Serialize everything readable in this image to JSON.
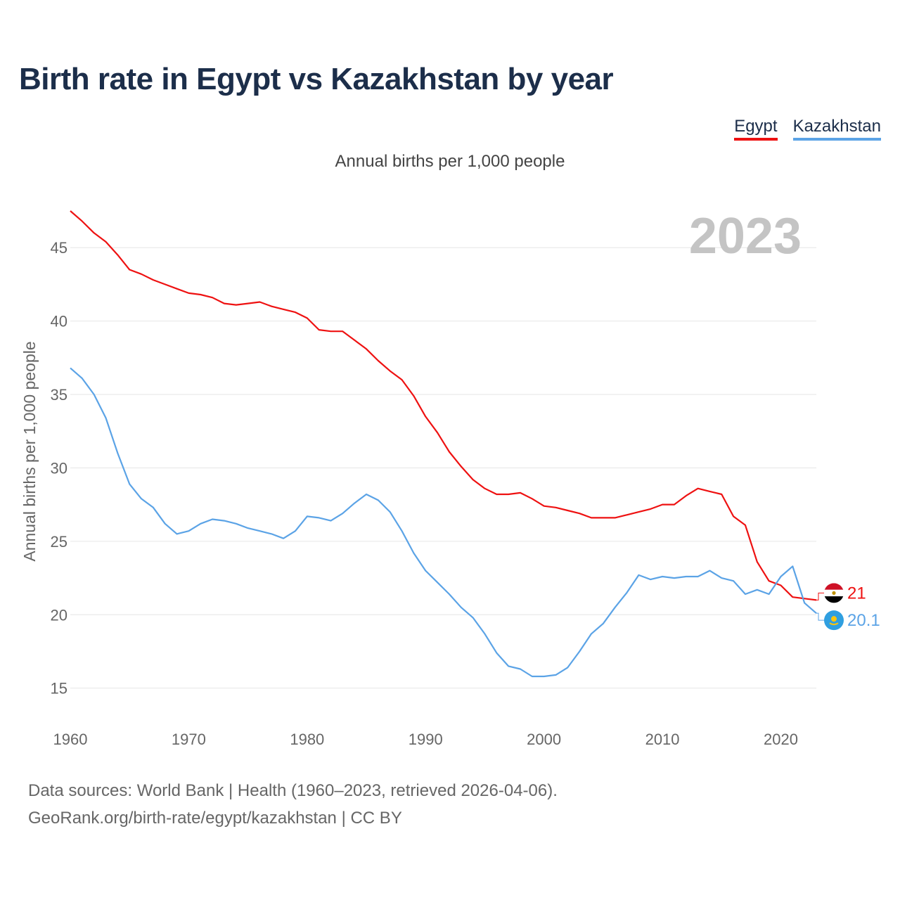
{
  "header": {
    "title": "Birth rate in Egypt vs Kazakhstan by year",
    "subtitle": "Annual births per 1,000 people"
  },
  "legend": {
    "items": [
      {
        "label": "Egypt",
        "color": "#ee1111"
      },
      {
        "label": "Kazakhstan",
        "color": "#5ba3e6"
      }
    ]
  },
  "year_watermark": "2023",
  "footer": {
    "line1": "Data sources: World Bank | Health (1960–2023, retrieved 2026-04-06).",
    "line2": "GeoRank.org/birth-rate/egypt/kazakhstan | CC BY"
  },
  "chart_data": {
    "type": "line",
    "ylabel": "Annual births per 1,000 people",
    "xlim": [
      1960,
      2023
    ],
    "ylim": [
      13.5,
      47.5
    ],
    "x_ticks": [
      1960,
      1970,
      1980,
      1990,
      2000,
      2010,
      2020
    ],
    "y_ticks": [
      15,
      20,
      25,
      30,
      35,
      40,
      45
    ],
    "grid": true,
    "legend_position": "top-right",
    "x": [
      1960,
      1961,
      1962,
      1963,
      1964,
      1965,
      1966,
      1967,
      1968,
      1969,
      1970,
      1971,
      1972,
      1973,
      1974,
      1975,
      1976,
      1977,
      1978,
      1979,
      1980,
      1981,
      1982,
      1983,
      1984,
      1985,
      1986,
      1987,
      1988,
      1989,
      1990,
      1991,
      1992,
      1993,
      1994,
      1995,
      1996,
      1997,
      1998,
      1999,
      2000,
      2001,
      2002,
      2003,
      2004,
      2005,
      2006,
      2007,
      2008,
      2009,
      2010,
      2011,
      2012,
      2013,
      2014,
      2015,
      2016,
      2017,
      2018,
      2019,
      2020,
      2021,
      2022,
      2023
    ],
    "series": [
      {
        "name": "Egypt",
        "color": "#ee1111",
        "end_label": "21",
        "values": [
          47.5,
          46.8,
          46.0,
          45.4,
          44.5,
          43.5,
          43.2,
          42.8,
          42.5,
          42.2,
          41.9,
          41.8,
          41.6,
          41.2,
          41.1,
          41.2,
          41.3,
          41.0,
          40.8,
          40.6,
          40.2,
          39.4,
          39.3,
          39.3,
          38.7,
          38.1,
          37.3,
          36.6,
          36.0,
          34.9,
          33.5,
          32.4,
          31.1,
          30.1,
          29.2,
          28.6,
          28.2,
          28.2,
          28.3,
          27.9,
          27.4,
          27.3,
          27.1,
          26.9,
          26.6,
          26.6,
          26.6,
          26.8,
          27.0,
          27.2,
          27.5,
          27.5,
          28.1,
          28.6,
          28.4,
          28.2,
          26.7,
          26.1,
          23.6,
          22.3,
          22.0,
          21.2,
          21.1,
          21.0
        ]
      },
      {
        "name": "Kazakhstan",
        "color": "#5ba3e6",
        "end_label": "20.1",
        "values": [
          36.8,
          36.1,
          35.0,
          33.4,
          31.0,
          28.9,
          27.9,
          27.3,
          26.2,
          25.5,
          25.7,
          26.2,
          26.5,
          26.4,
          26.2,
          25.9,
          25.7,
          25.5,
          25.2,
          25.7,
          26.7,
          26.6,
          26.4,
          26.9,
          27.6,
          28.2,
          27.8,
          27.0,
          25.7,
          24.2,
          23.0,
          22.2,
          21.4,
          20.5,
          19.8,
          18.7,
          17.4,
          16.5,
          16.3,
          15.8,
          15.8,
          15.9,
          16.4,
          17.5,
          18.7,
          19.4,
          20.5,
          21.5,
          22.7,
          22.4,
          22.6,
          22.5,
          22.6,
          22.6,
          23.0,
          22.5,
          22.3,
          21.4,
          21.7,
          21.4,
          22.6,
          23.3,
          20.8,
          20.1
        ]
      }
    ]
  }
}
